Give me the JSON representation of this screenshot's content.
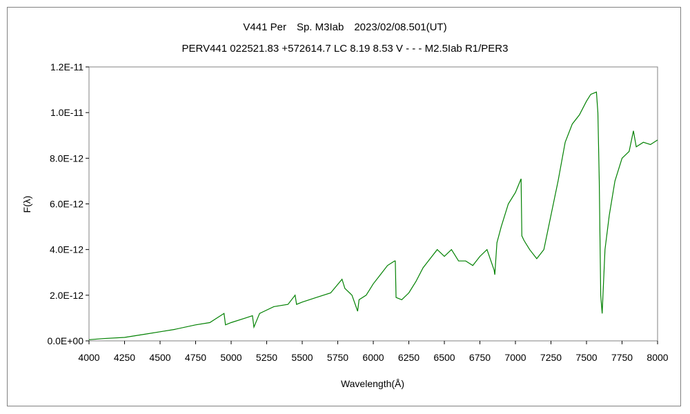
{
  "chart_data": {
    "type": "line",
    "title": "V441 Per　Sp. M3Iab　2023/02/08.501(UT)",
    "subtitle": "PERV441 022521.83 +572614.7 LC 8.19 8.53 V - - - M2.5Iab R1/PER3",
    "xlabel": "Wavelength(Å)",
    "ylabel": "F(λ)",
    "xlim": [
      4000,
      8000
    ],
    "ylim": [
      0,
      1.2e-11
    ],
    "x_ticks": [
      "4000",
      "4250",
      "4500",
      "4750",
      "5000",
      "5250",
      "5500",
      "5750",
      "6000",
      "6250",
      "6500",
      "6750",
      "7000",
      "7250",
      "7500",
      "7750",
      "8000"
    ],
    "y_ticks": [
      "0.0E+00",
      "2.0E-12",
      "4.0E-12",
      "6.0E-12",
      "8.0E-12",
      "1.0E-11",
      "1.2E-11"
    ],
    "grid": false,
    "series": [
      {
        "name": "F(λ)",
        "color": "#008000",
        "unit_scale": 1e-12,
        "x": [
          4000,
          4100,
          4250,
          4400,
          4500,
          4600,
          4750,
          4850,
          4900,
          4950,
          4960,
          5000,
          5100,
          5150,
          5160,
          5200,
          5300,
          5400,
          5450,
          5460,
          5500,
          5600,
          5700,
          5780,
          5800,
          5850,
          5890,
          5900,
          5950,
          6000,
          6050,
          6100,
          6150,
          6155,
          6160,
          6200,
          6250,
          6300,
          6350,
          6400,
          6450,
          6500,
          6550,
          6600,
          6650,
          6700,
          6750,
          6800,
          6850,
          6855,
          6870,
          6900,
          6950,
          7000,
          7040,
          7045,
          7060,
          7100,
          7150,
          7200,
          7250,
          7300,
          7350,
          7400,
          7450,
          7500,
          7530,
          7570,
          7580,
          7590,
          7600,
          7610,
          7630,
          7660,
          7700,
          7750,
          7800,
          7830,
          7850,
          7900,
          7950,
          8000
        ],
        "y": [
          0.05,
          0.1,
          0.15,
          0.3,
          0.4,
          0.5,
          0.7,
          0.8,
          1.0,
          1.2,
          0.7,
          0.8,
          1.0,
          1.1,
          0.6,
          1.2,
          1.5,
          1.6,
          2.0,
          1.6,
          1.7,
          1.9,
          2.1,
          2.7,
          2.3,
          2.0,
          1.3,
          1.8,
          2.0,
          2.5,
          2.9,
          3.3,
          3.5,
          3.5,
          1.9,
          1.8,
          2.1,
          2.6,
          3.2,
          3.6,
          4.0,
          3.7,
          4.0,
          3.5,
          3.5,
          3.3,
          3.7,
          4.0,
          3.1,
          2.9,
          4.3,
          5.0,
          6.0,
          6.5,
          7.1,
          4.6,
          4.4,
          4.0,
          3.6,
          4.0,
          5.5,
          7.0,
          8.7,
          9.5,
          9.9,
          10.5,
          10.8,
          10.9,
          10.0,
          7.0,
          2.0,
          1.2,
          4.0,
          5.5,
          7.0,
          8.0,
          8.3,
          9.2,
          8.5,
          8.7,
          8.6,
          8.8
        ]
      }
    ]
  }
}
